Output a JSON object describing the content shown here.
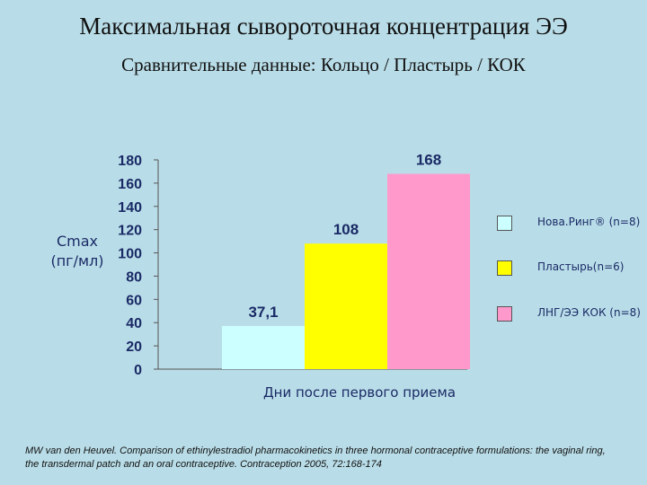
{
  "slide": {
    "title": "Максимальная сывороточная концентрация ЭЭ",
    "subtitle": "Сравнительные данные: Кольцо / Пластырь / КОК",
    "citation": "MW van den Heuvel. Comparison of ethinylestradiol pharmacokinetics in three hormonal contraceptive formulations: the vaginal ring, the transdermal patch and an oral contraceptive. Contraception 2005, 72:168-174"
  },
  "chart_data": {
    "type": "bar",
    "title": "",
    "ylabel_line1": "Cmax",
    "ylabel_line2": "(пг/мл)",
    "xlabel": "Дни после первого приема",
    "ylim": [
      0,
      180
    ],
    "yticks": [
      0,
      20,
      40,
      60,
      80,
      100,
      120,
      140,
      160,
      180
    ],
    "grid": false,
    "legend_position": "right",
    "series": [
      {
        "name": "Нова.Ринг® (n=8)",
        "value": 37.1,
        "label": "37,1",
        "color": "#ccffff"
      },
      {
        "name": "Пластырь(n=6)",
        "value": 108,
        "label": "108",
        "color": "#ffff00"
      },
      {
        "name": "ЛНГ/ЭЭ КОК (n=8)",
        "value": 168,
        "label": "168",
        "color": "#ff99cc"
      }
    ]
  }
}
